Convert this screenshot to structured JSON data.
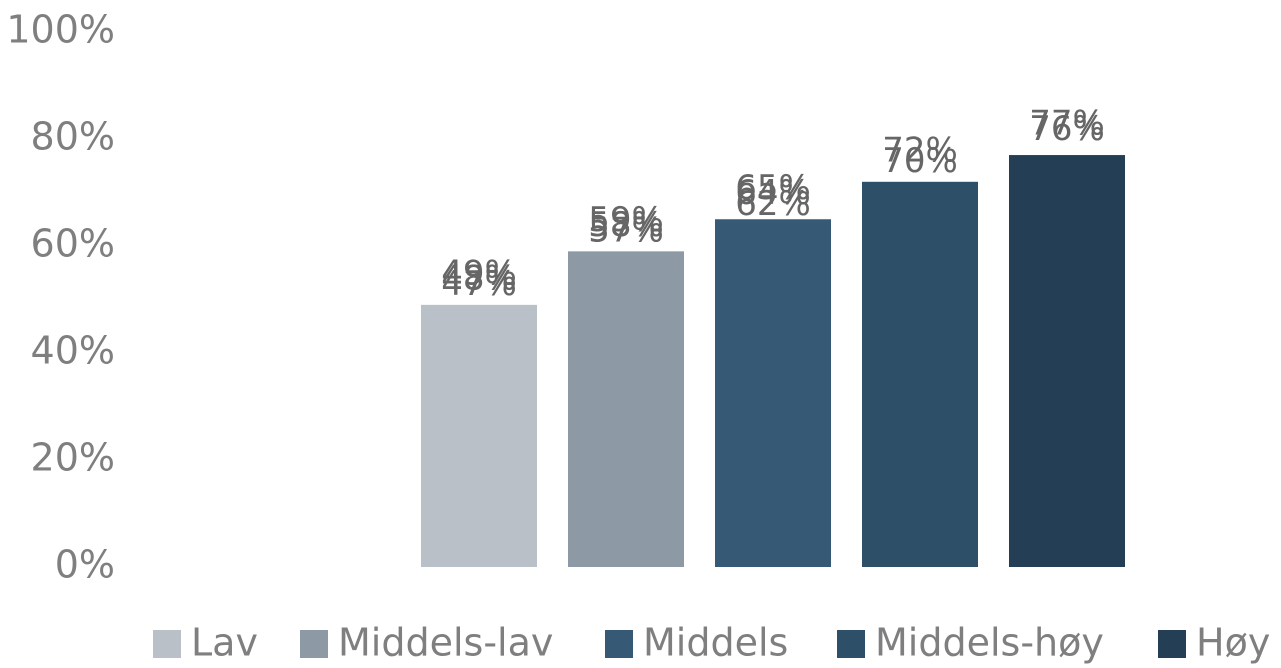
{
  "chart_data": {
    "type": "bar",
    "categories": [
      null,
      null,
      null
    ],
    "series": [
      {
        "name": "Lav",
        "color": "#b9c0c8",
        "values": [
          49,
          48,
          47
        ],
        "value_labels": [
          "49%",
          "48%",
          "47%"
        ]
      },
      {
        "name": "Middels-lav",
        "color": "#8d99a4",
        "values": [
          59,
          58,
          57
        ],
        "value_labels": [
          "59%",
          "58%",
          "57%"
        ]
      },
      {
        "name": "Middels",
        "color": "#365a75",
        "values": [
          65,
          64,
          62
        ],
        "value_labels": [
          "65%",
          "64%",
          "62%"
        ]
      },
      {
        "name": "Middels-høy",
        "color": "#2d4f67",
        "values": [
          72,
          70,
          null
        ],
        "value_labels": [
          "72%",
          "70%",
          null
        ]
      },
      {
        "name": "Høy",
        "color": "#243f55",
        "values": [
          77,
          76,
          null
        ],
        "value_labels": [
          "77%",
          "76%",
          null
        ]
      }
    ],
    "ylim": [
      0,
      100
    ],
    "yticks": [
      {
        "value": 0,
        "label": "0%"
      },
      {
        "value": 20,
        "label": "20%"
      },
      {
        "value": 40,
        "label": "40%"
      },
      {
        "value": 60,
        "label": "60%"
      },
      {
        "value": 80,
        "label": "80%"
      },
      {
        "value": 100,
        "label": "100%"
      }
    ],
    "grid": false,
    "legend": "bottom"
  }
}
